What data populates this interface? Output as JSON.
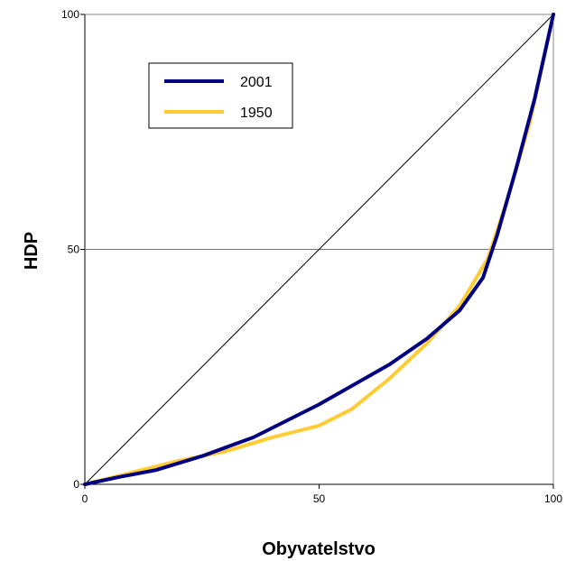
{
  "chart_data": {
    "type": "line",
    "xlabel": "Obyvatelstvo",
    "ylabel": "HDP",
    "xlim": [
      0,
      100
    ],
    "ylim": [
      0,
      100
    ],
    "x_ticks": [
      0,
      50,
      100
    ],
    "y_ticks": [
      0,
      50,
      100
    ],
    "gridlines_y": [
      50
    ],
    "legend_position": "top-left",
    "diagonal": {
      "points": [
        [
          0,
          0
        ],
        [
          100,
          100
        ]
      ],
      "color": "#000000"
    },
    "series": [
      {
        "name": "2001",
        "color": "#000080",
        "points": [
          [
            0,
            0
          ],
          [
            7,
            1.5
          ],
          [
            15,
            3
          ],
          [
            25,
            6
          ],
          [
            36,
            10
          ],
          [
            50,
            17
          ],
          [
            65,
            25.5
          ],
          [
            73,
            31
          ],
          [
            80,
            37
          ],
          [
            85,
            44
          ],
          [
            88,
            53
          ],
          [
            92,
            67
          ],
          [
            96,
            82
          ],
          [
            100,
            100
          ]
        ]
      },
      {
        "name": "1950",
        "color": "#FFCC33",
        "points": [
          [
            0,
            0
          ],
          [
            10,
            2.5
          ],
          [
            20,
            5
          ],
          [
            30,
            7
          ],
          [
            40,
            10
          ],
          [
            50,
            12.5
          ],
          [
            57,
            16
          ],
          [
            65,
            22.5
          ],
          [
            73,
            30
          ],
          [
            80,
            38
          ],
          [
            86,
            48
          ],
          [
            90,
            60
          ],
          [
            95,
            77
          ],
          [
            100,
            100
          ]
        ]
      }
    ]
  }
}
